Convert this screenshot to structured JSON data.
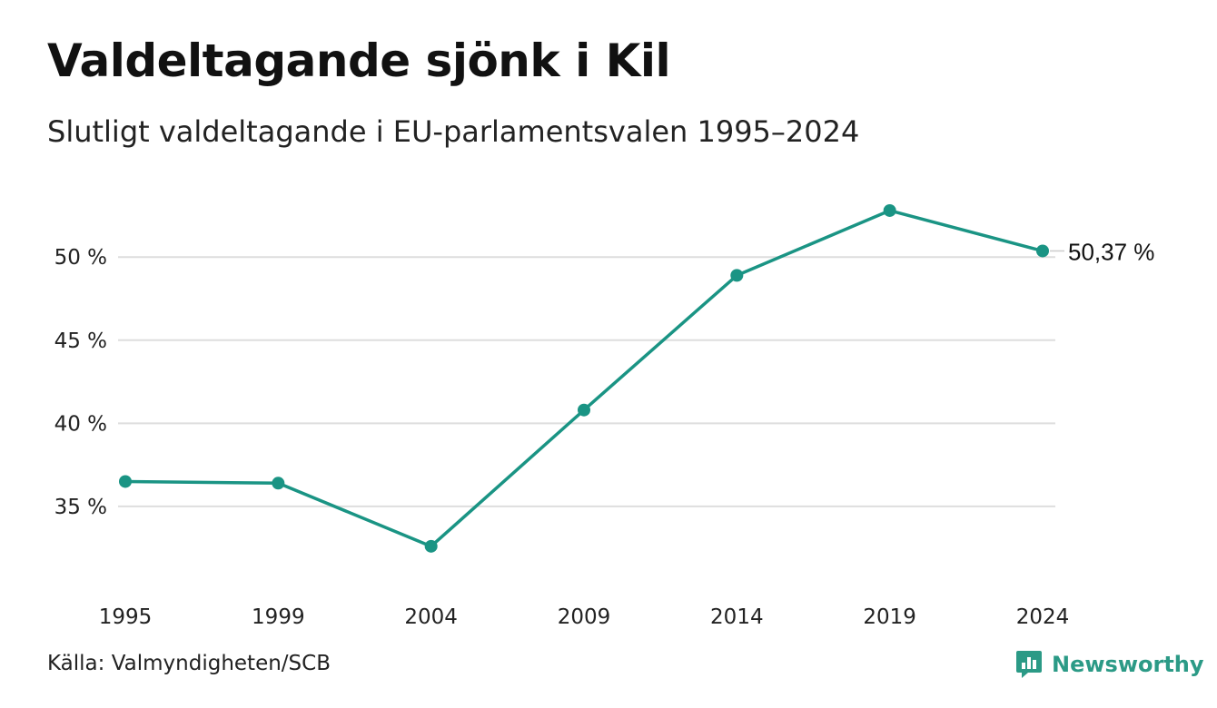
{
  "title": "Valdeltagande sjönk i Kil",
  "subtitle": "Slutligt valdeltagande i EU-parlamentsvalen 1995–2024",
  "source": "Källa: Valmyndigheten/SCB",
  "brand": {
    "name": "Newsworthy",
    "icon": "newsworthy-logo-icon",
    "color": "#2b9a86"
  },
  "chart_data": {
    "type": "line",
    "x": [
      "1995",
      "1999",
      "2004",
      "2009",
      "2014",
      "2019",
      "2024"
    ],
    "series": [
      {
        "values": [
          36.5,
          36.4,
          32.6,
          40.8,
          48.9,
          52.8,
          50.37
        ],
        "color": "#1a9484"
      }
    ],
    "y_ticks": [
      35,
      40,
      45,
      50
    ],
    "y_tick_labels": [
      "35 %",
      "40 %",
      "45 %",
      "50 %"
    ],
    "ylim": [
      31.5,
      54
    ],
    "grid": true,
    "end_label": "50,37 %",
    "xlabel": "",
    "ylabel": ""
  }
}
